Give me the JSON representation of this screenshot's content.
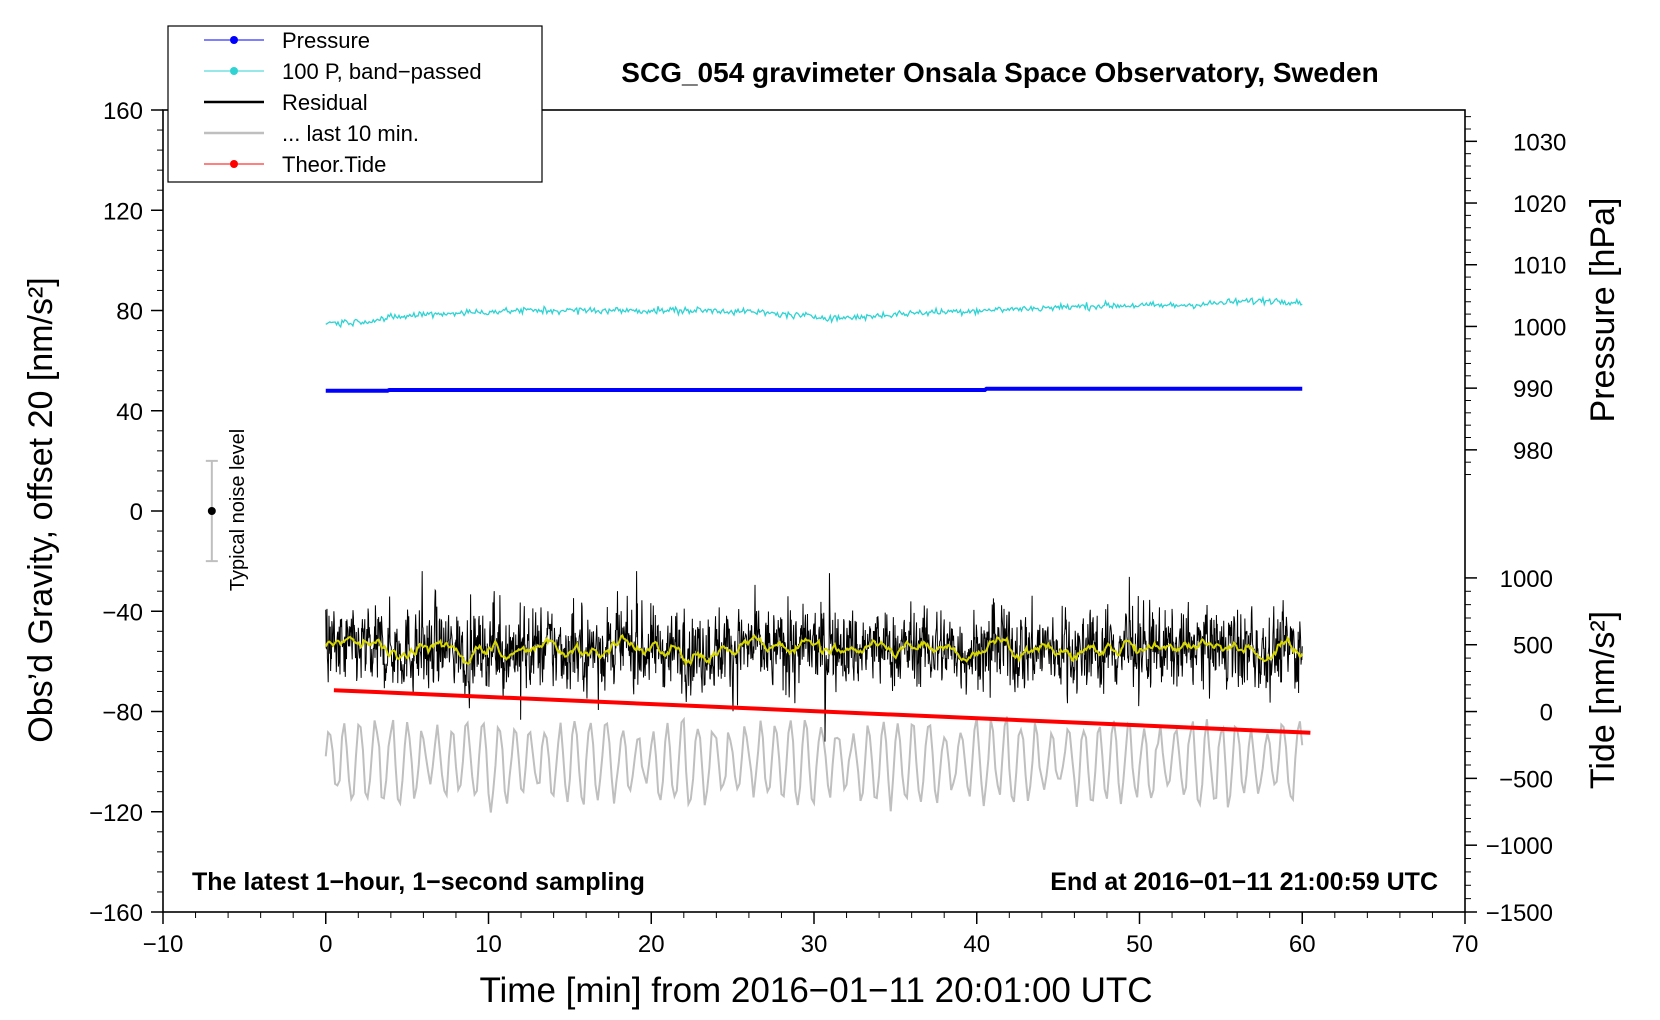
{
  "chart_data": {
    "type": "line",
    "title": "SCG_054 gravimeter Onsala Space Observatory, Sweden",
    "xlabel": "Time [min] from 2016−01−11 20:01:00 UTC",
    "ylabel_left": "Obs’d Gravity, offset 20 [nm/s²]",
    "ylabel_pressure": "Pressure [hPa]",
    "ylabel_tide": "Tide [nm/s²]",
    "xlim": [
      -10,
      70
    ],
    "ylim_left": [
      -160,
      160
    ],
    "x_ticks": [
      "−10",
      "0",
      "10",
      "20",
      "30",
      "40",
      "50",
      "60",
      "70"
    ],
    "x_tick_values": [
      -10,
      0,
      10,
      20,
      30,
      40,
      50,
      60,
      70
    ],
    "y_left_ticks": [
      "160",
      "120",
      "80",
      "40",
      "0",
      "−40",
      "−80",
      "−120",
      "−160"
    ],
    "y_left_tick_values": [
      160,
      120,
      80,
      40,
      0,
      -40,
      -80,
      -120,
      -160
    ],
    "pressure_axis": {
      "ticks": [
        "1030",
        "1020",
        "1010",
        "1000",
        "990",
        "980"
      ],
      "tick_values": [
        1030,
        1020,
        1010,
        1000,
        990,
        980
      ],
      "left_axis_equivalent": {
        "1030": 147.5,
        "980": 24.4
      }
    },
    "tide_axis": {
      "ticks": [
        "1000",
        "500",
        "0",
        "−500",
        "−1000",
        "−1500"
      ],
      "tick_values": [
        1000,
        500,
        0,
        -500,
        -1000,
        -1500
      ],
      "left_axis_equivalent": {
        "1000": -26.7,
        "-1500": -160
      }
    },
    "annotations": {
      "bottom_left": "The latest 1−hour, 1−second sampling",
      "bottom_right": "End at 2016−01−11 21:00:59 UTC",
      "noise_label": "Typical noise level"
    },
    "noise_bar": {
      "x": -7,
      "center": 0,
      "low": -20,
      "high": 20
    },
    "legend": {
      "position": "top-left",
      "entries": [
        {
          "label": "Pressure",
          "color": "#0000ff",
          "marker": true
        },
        {
          "label": "100 P, band−passed",
          "color": "#2fd3d3",
          "marker": true
        },
        {
          "label": "Residual",
          "color": "#000000",
          "marker": false
        },
        {
          "label": "... last 10 min.",
          "color": "#bfbfbf",
          "marker": false
        },
        {
          "label": "Theor.Tide",
          "color": "#ff0000",
          "marker": true
        }
      ]
    },
    "series": [
      {
        "name": "Pressure",
        "color": "#0000ff",
        "x": [
          0,
          3.8,
          3.9,
          40.5,
          40.6,
          60
        ],
        "y": [
          48,
          48,
          48.3,
          48.3,
          48.8,
          48.8
        ]
      },
      {
        "name": "100 P, band−passed",
        "color": "#2fd3d3",
        "x": [
          0,
          2,
          4,
          6,
          8,
          10,
          12,
          14,
          16,
          18,
          20,
          22,
          24,
          26,
          28,
          30,
          32,
          34,
          36,
          38,
          40,
          42,
          44,
          46,
          48,
          50,
          52,
          54,
          56,
          58,
          60
        ],
        "y": [
          75,
          75.5,
          77,
          78.5,
          79,
          79.5,
          80,
          80,
          80,
          80,
          80,
          80,
          80,
          79.5,
          78.5,
          77.5,
          77,
          78,
          79,
          79.5,
          80,
          80.5,
          81,
          81.5,
          82,
          82,
          82,
          82.5,
          83.5,
          84,
          83.5
        ]
      },
      {
        "name": "Residual",
        "color": "#000000",
        "x_range": [
          0,
          60
        ],
        "mean": -55,
        "min": -92,
        "max": -24
      },
      {
        "name": "Residual (smoothed)",
        "color": "#d6d600",
        "x_range": [
          0,
          60
        ],
        "mean": -55,
        "min": -61,
        "max": -49
      },
      {
        "name": "... last 10 min.",
        "color": "#bfbfbf",
        "x_range": [
          0,
          60
        ],
        "mean": -100,
        "min": -124,
        "max": -79
      },
      {
        "name": "Theor.Tide",
        "color": "#ff0000",
        "x": [
          0.5,
          60.5
        ],
        "y": [
          -71.5,
          -88.5
        ]
      }
    ]
  }
}
